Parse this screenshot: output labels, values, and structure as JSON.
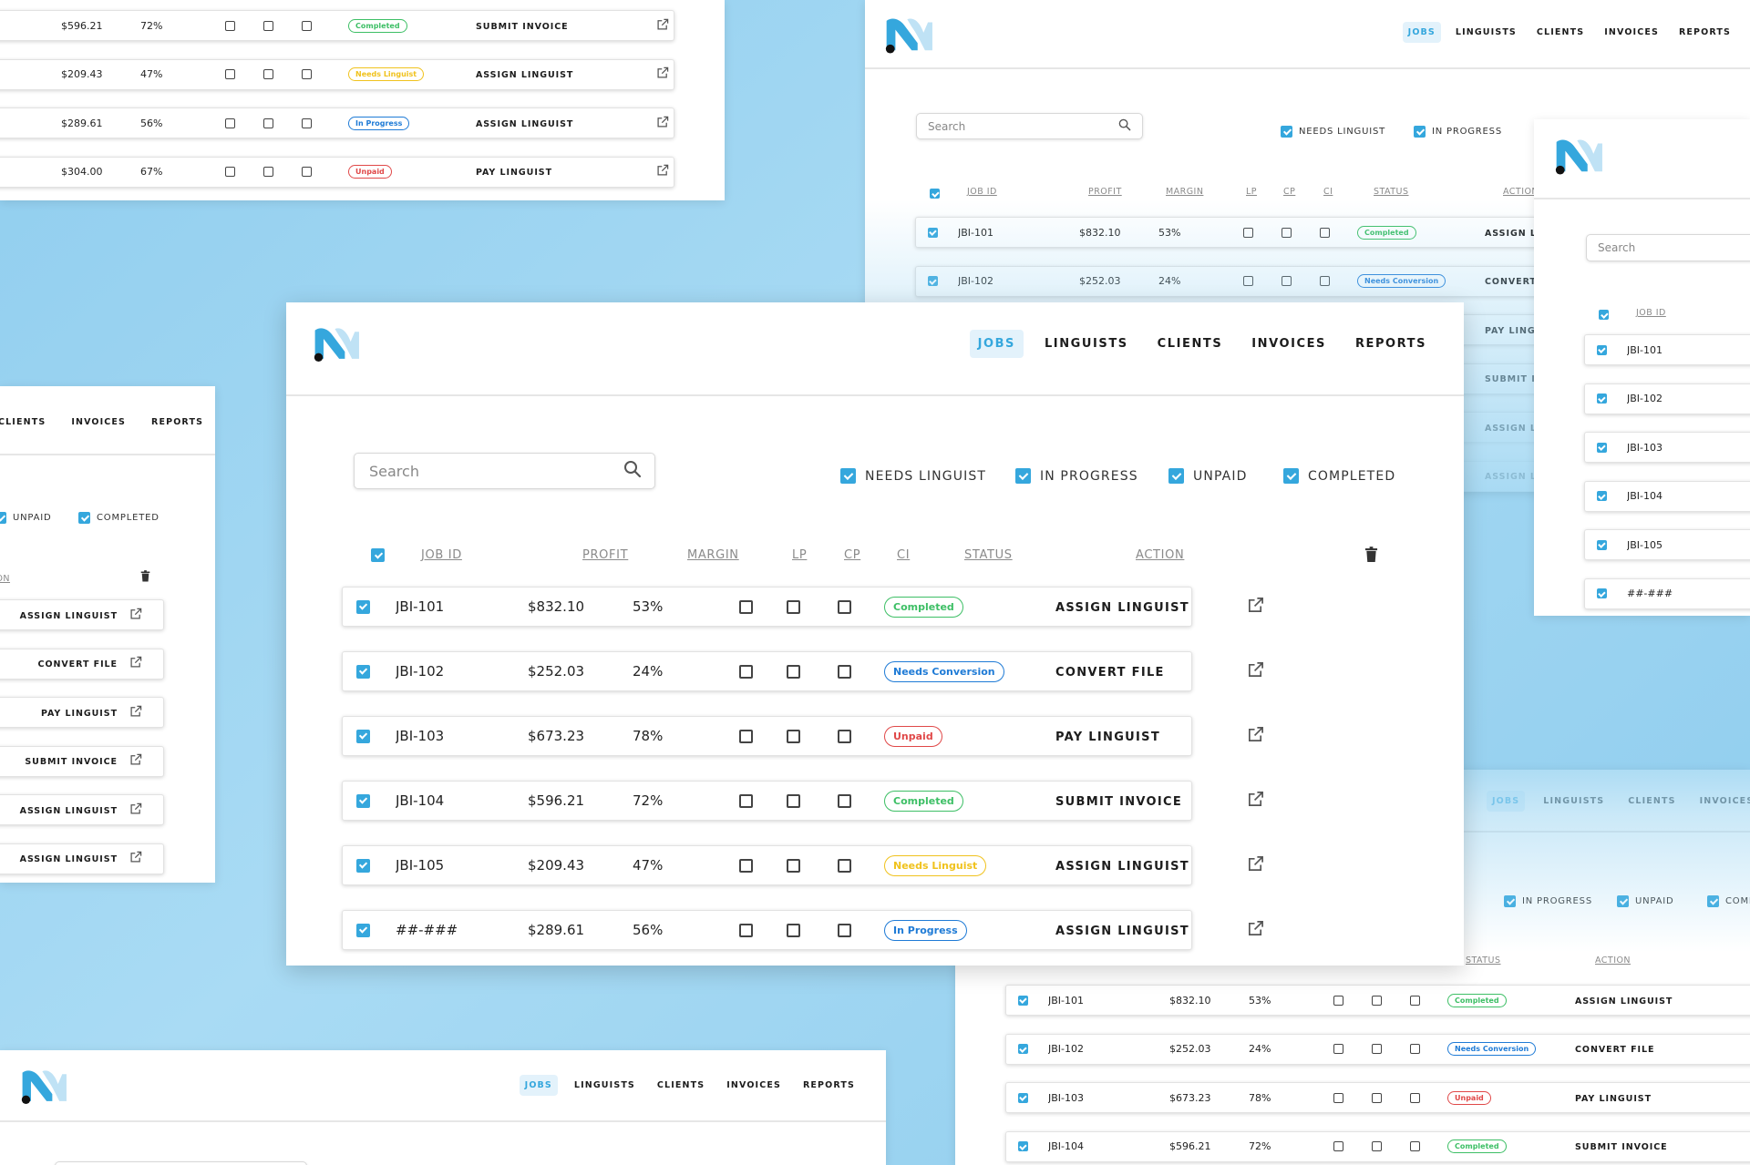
{
  "nav": {
    "jobs": "JOBS",
    "linguists": "LINGUISTS",
    "clients": "CLIENTS",
    "invoices": "INVOICES",
    "reports": "REPORTS"
  },
  "search": {
    "placeholder": "Search"
  },
  "filters": {
    "needs_linguist": "NEEDS LINGUIST",
    "in_progress": "IN PROGRESS",
    "unpaid": "UNPAID",
    "completed": "COMPLETED"
  },
  "columns": {
    "job_id": "JOB ID",
    "profit": "PROFIT",
    "margin": "MARGIN",
    "lp": "LP",
    "cp": "CP",
    "ci": "CI",
    "status": "STATUS",
    "action": "ACTION"
  },
  "rows": [
    {
      "job_id": "JBI-101",
      "profit": "$832.10",
      "margin": "53%",
      "status": "Completed",
      "status_key": "completed",
      "action": "ASSIGN LINGUIST"
    },
    {
      "job_id": "JBI-102",
      "profit": "$252.03",
      "margin": "24%",
      "status": "Needs Conversion",
      "status_key": "needs-conversion",
      "action": "CONVERT FILE"
    },
    {
      "job_id": "JBI-103",
      "profit": "$673.23",
      "margin": "78%",
      "status": "Unpaid",
      "status_key": "unpaid",
      "action": "PAY LINGUIST"
    },
    {
      "job_id": "JBI-104",
      "profit": "$596.21",
      "margin": "72%",
      "status": "Completed",
      "status_key": "completed",
      "action": "SUBMIT INVOICE"
    },
    {
      "job_id": "JBI-105",
      "profit": "$209.43",
      "margin": "47%",
      "status": "Needs Linguist",
      "status_key": "needs-linguist",
      "action": "ASSIGN LINGUIST"
    },
    {
      "job_id": "##-###",
      "profit": "$289.61",
      "margin": "56%",
      "status": "In Progress",
      "status_key": "in-progress",
      "action": "ASSIGN LINGUIST"
    }
  ],
  "extra_row": {
    "profit": "$304.00",
    "margin": "67%",
    "status": "Unpaid",
    "status_key": "unpaid",
    "action": "PAY LINGUIST"
  },
  "colors": {
    "background": "#9fd6f2",
    "accent": "#35a7dd",
    "completed": "#3dbf65",
    "needs_conversion": "#1f7bd6",
    "unpaid": "#e04848",
    "needs_linguist": "#f0c21d",
    "in_progress": "#1f7bd6"
  },
  "icons": {
    "logo": "n-logo-icon",
    "search": "search-icon",
    "open": "open-external-icon",
    "delete": "trash-icon",
    "checkbox": "checkbox-icon"
  }
}
